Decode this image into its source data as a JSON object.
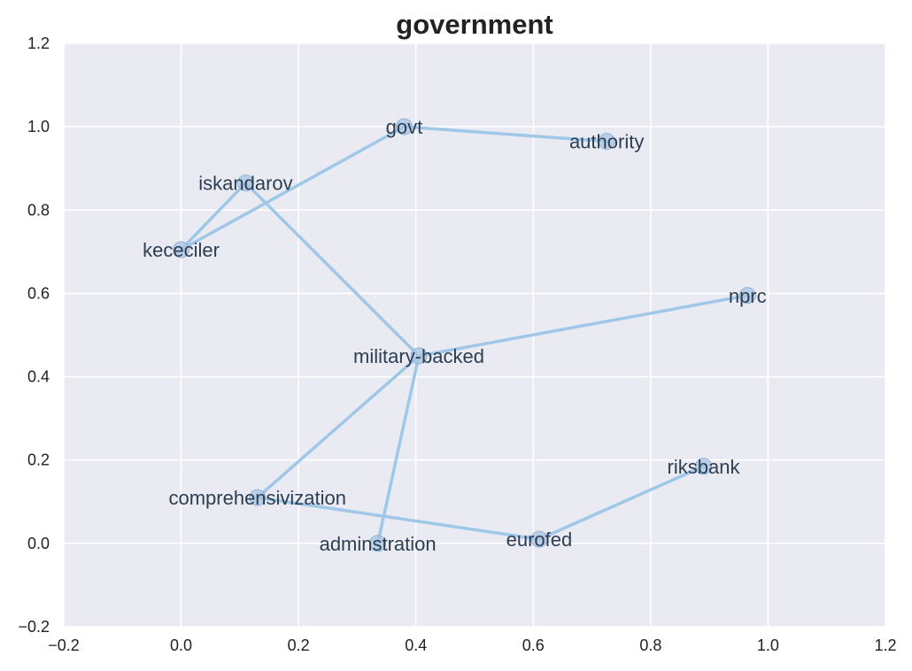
{
  "chart_data": {
    "type": "scatter",
    "title": "government",
    "xlabel": "",
    "ylabel": "",
    "xlim": [
      -0.2,
      1.2
    ],
    "ylim": [
      -0.2,
      1.2
    ],
    "xticks": [
      -0.2,
      0.0,
      0.2,
      0.4,
      0.6,
      0.8,
      1.0,
      1.2
    ],
    "yticks": [
      -0.2,
      0.0,
      0.2,
      0.4,
      0.6,
      0.8,
      1.0,
      1.2
    ],
    "xtick_labels": [
      "−0.2",
      "0.0",
      "0.2",
      "0.4",
      "0.6",
      "0.8",
      "1.0",
      "1.2"
    ],
    "ytick_labels": [
      "−0.2",
      "0.0",
      "0.2",
      "0.4",
      "0.6",
      "0.8",
      "1.0",
      "1.2"
    ],
    "grid": true,
    "points": [
      {
        "label": "govt",
        "x": 0.38,
        "y": 1.0
      },
      {
        "label": "authority",
        "x": 0.725,
        "y": 0.965
      },
      {
        "label": "iskandarov",
        "x": 0.11,
        "y": 0.865
      },
      {
        "label": "kececiler",
        "x": 0.0,
        "y": 0.705
      },
      {
        "label": "nprc",
        "x": 0.965,
        "y": 0.595
      },
      {
        "label": "military-backed",
        "x": 0.405,
        "y": 0.45
      },
      {
        "label": "riksbank",
        "x": 0.89,
        "y": 0.185
      },
      {
        "label": "comprehensivization",
        "x": 0.13,
        "y": 0.11
      },
      {
        "label": "eurofed",
        "x": 0.61,
        "y": 0.01
      },
      {
        "label": "adminstration",
        "x": 0.335,
        "y": 0.0
      }
    ],
    "edges": [
      [
        "govt",
        "authority"
      ],
      [
        "govt",
        "kececiler"
      ],
      [
        "kececiler",
        "iskandarov"
      ],
      [
        "iskandarov",
        "military-backed"
      ],
      [
        "military-backed",
        "nprc"
      ],
      [
        "military-backed",
        "comprehensivization"
      ],
      [
        "military-backed",
        "adminstration"
      ],
      [
        "comprehensivization",
        "eurofed"
      ],
      [
        "eurofed",
        "riksbank"
      ]
    ],
    "colors": {
      "plot_background": "#eaeaf2",
      "grid": "#ffffff",
      "edge": "#9fc8e8",
      "marker_fill": "#a9c6e3",
      "marker_stroke": "#8fb4d8",
      "label": "#2c3e50"
    }
  }
}
